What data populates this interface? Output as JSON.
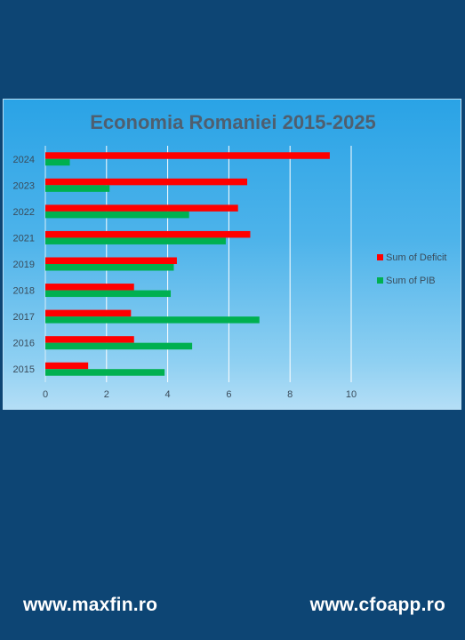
{
  "chart_data": {
    "type": "bar",
    "orientation": "horizontal",
    "title": "Economia Romaniei 2015-2025",
    "categories": [
      "2024",
      "2023",
      "2022",
      "2021",
      "2019",
      "2018",
      "2017",
      "2016",
      "2015"
    ],
    "series": [
      {
        "name": "Sum of Deficit",
        "color": "#ff0000",
        "values": [
          9.3,
          6.6,
          6.3,
          6.7,
          4.3,
          2.9,
          2.8,
          2.9,
          1.4
        ]
      },
      {
        "name": "Sum of PIB",
        "color": "#00b050",
        "values": [
          0.8,
          2.1,
          4.7,
          5.9,
          4.2,
          4.1,
          7.0,
          4.8,
          3.9
        ]
      }
    ],
    "xlim": [
      0,
      10
    ],
    "x_ticks": [
      "0",
      "2",
      "4",
      "6",
      "8",
      "10"
    ],
    "grid": true,
    "legend_position": "right"
  },
  "footer": {
    "left": "www.maxfin.ro",
    "right": "www.cfoapp.ro"
  }
}
